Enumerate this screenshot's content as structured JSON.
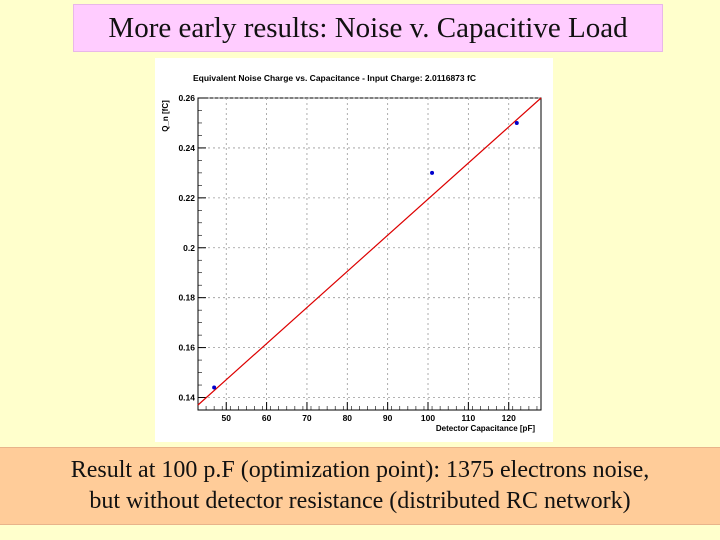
{
  "slide": {
    "title": "More early results: Noise v. Capacitive Load",
    "caption_line1": "Result at 100 p.F (optimization point): 1375 electrons noise,",
    "caption_line2": "but without detector resistance (distributed RC network)"
  },
  "colors": {
    "slide_background": "#ffffcc",
    "title_background": "#ffccff",
    "caption_background": "#ffcc99",
    "fit_line": "#dd0000",
    "data_points": "#0000cc",
    "grid": "#999999"
  },
  "chart_data": {
    "type": "scatter",
    "title": "Equivalent Noise Charge vs. Capacitance - Input Charge: 2.0116873 fC",
    "xlabel": "Detector Capacitance [pF]",
    "ylabel": "Q_n [fC]",
    "xlim": [
      43,
      128
    ],
    "ylim": [
      0.135,
      0.26
    ],
    "x_ticks": [
      50,
      60,
      70,
      80,
      90,
      100,
      110,
      120
    ],
    "y_ticks": [
      0.14,
      0.16,
      0.18,
      0.2,
      0.22,
      0.24,
      0.26
    ],
    "y_tick_labels": [
      "0.14",
      "0.16",
      "0.18",
      "0.2",
      "0.22",
      "0.24",
      "0.26"
    ],
    "grid": true,
    "series": [
      {
        "points": [
          [
            47,
            0.144
          ],
          [
            101,
            0.23
          ],
          [
            122,
            0.25
          ]
        ]
      }
    ],
    "fit_line": {
      "type": "line",
      "points": [
        [
          43,
          0.137
        ],
        [
          128,
          0.26
        ]
      ]
    }
  }
}
